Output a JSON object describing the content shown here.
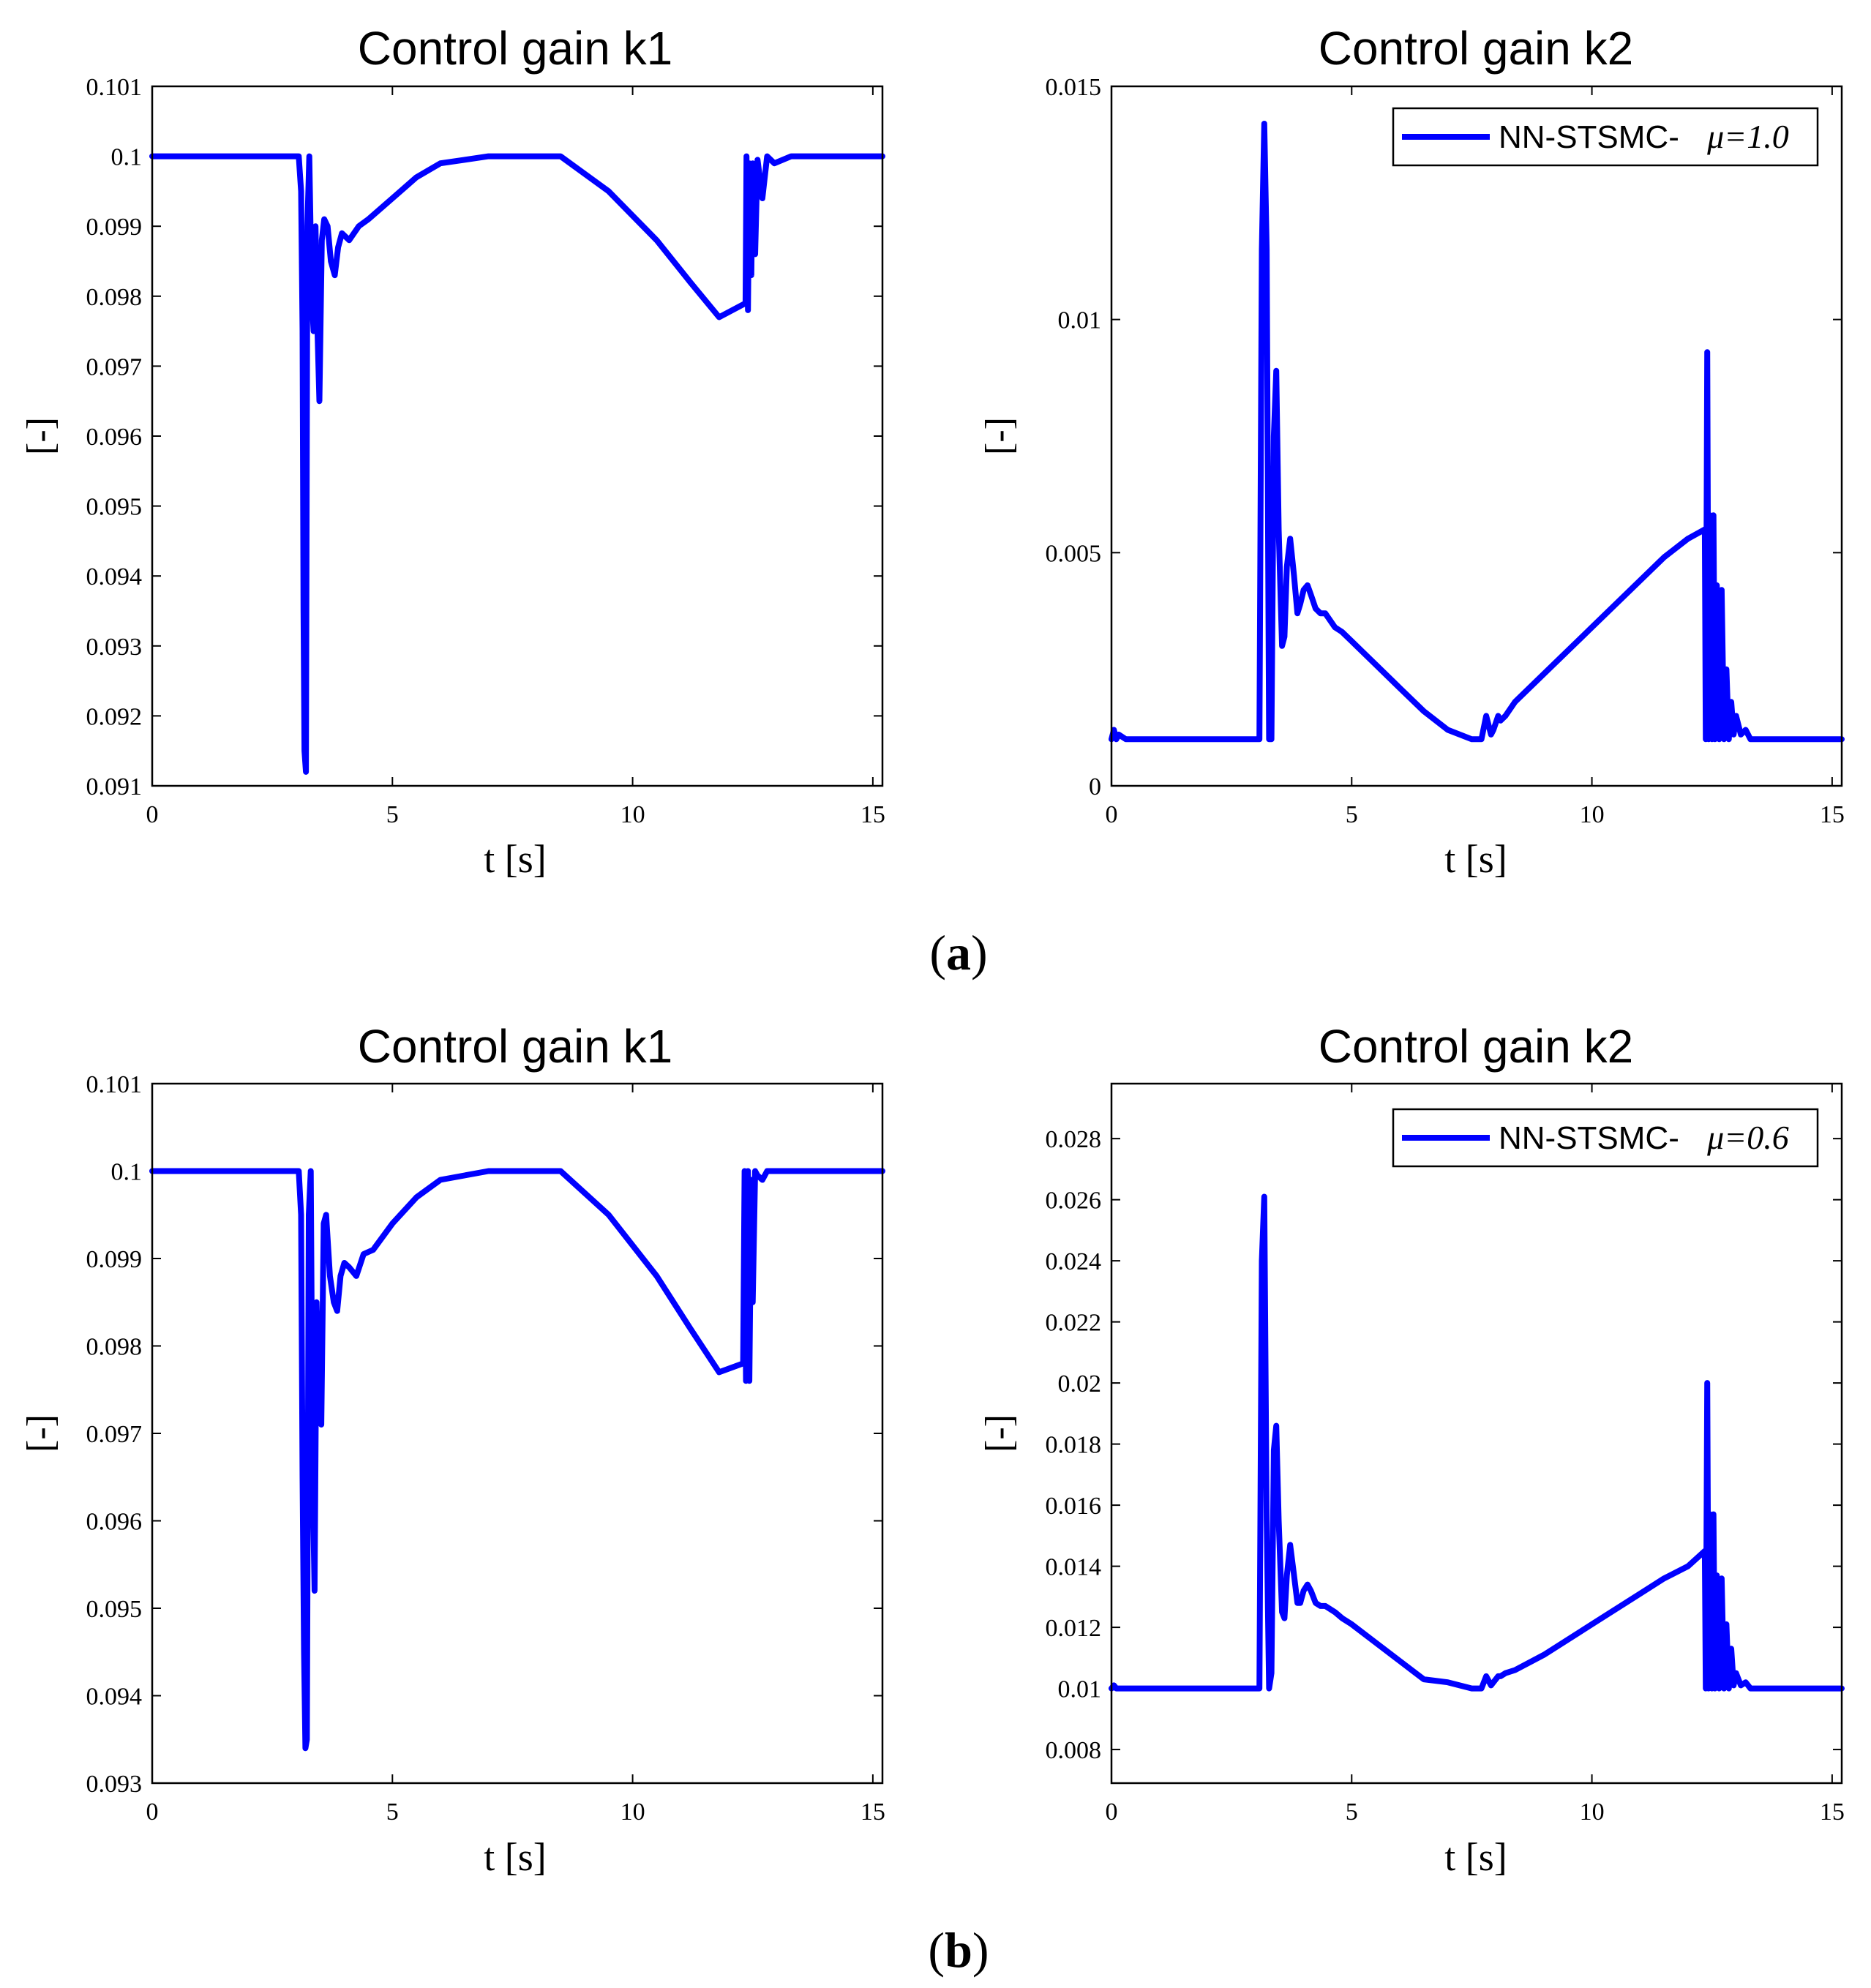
{
  "figure": {
    "captions": [
      {
        "open": "(",
        "letter": "a",
        "close": ")"
      },
      {
        "open": "(",
        "letter": "b",
        "close": ")"
      }
    ],
    "line_color": "#0000ff"
  },
  "chart_data": [
    {
      "id": "a-k1",
      "type": "line",
      "title": "Control gain k1",
      "xlabel": "t [s]",
      "ylabel": "[-]",
      "xlim": [
        0,
        15.2
      ],
      "ylim": [
        0.091,
        0.101
      ],
      "xticks": [
        0,
        5,
        10,
        15
      ],
      "xticklabels": [
        "0",
        "5",
        "10",
        "15"
      ],
      "yticks": [
        0.091,
        0.092,
        0.093,
        0.094,
        0.095,
        0.096,
        0.097,
        0.098,
        0.099,
        0.1,
        0.101
      ],
      "yticklabels": [
        "0.091",
        "0.092",
        "0.093",
        "0.094",
        "0.095",
        "0.096",
        "0.097",
        "0.098",
        "0.099",
        "0.1",
        "0.101"
      ],
      "legend": null,
      "series": [
        {
          "name": "NN-STSMC- μ=1.0",
          "x": [
            0,
            3.05,
            3.1,
            3.13,
            3.15,
            3.17,
            3.2,
            3.23,
            3.27,
            3.32,
            3.36,
            3.4,
            3.44,
            3.48,
            3.53,
            3.58,
            3.65,
            3.72,
            3.8,
            3.87,
            3.95,
            4.1,
            4.3,
            4.5,
            5.0,
            5.5,
            6.0,
            6.5,
            7.0,
            7.6,
            8.5,
            9.5,
            10.5,
            11.2,
            11.8,
            12.35,
            12.37,
            12.4,
            12.43,
            12.47,
            12.5,
            12.55,
            12.6,
            12.7,
            12.8,
            12.95,
            13.3,
            15.2
          ],
          "y": [
            0.1,
            0.1,
            0.0995,
            0.0975,
            0.0935,
            0.0915,
            0.0912,
            0.099,
            0.1,
            0.098,
            0.0975,
            0.099,
            0.0975,
            0.0965,
            0.0988,
            0.0991,
            0.099,
            0.0985,
            0.0983,
            0.0987,
            0.0989,
            0.0988,
            0.099,
            0.0991,
            0.0994,
            0.0997,
            0.0999,
            0.09995,
            0.1,
            0.1,
            0.1,
            0.0995,
            0.0988,
            0.0982,
            0.0977,
            0.0979,
            0.1,
            0.0978,
            0.0999,
            0.0983,
            0.0999,
            0.0986,
            0.09995,
            0.0994,
            0.1,
            0.0999,
            0.1,
            0.1
          ]
        }
      ]
    },
    {
      "id": "a-k2",
      "type": "line",
      "title": "Control gain k2",
      "xlabel": "t [s]",
      "ylabel": "[-]",
      "xlim": [
        0,
        15.2
      ],
      "ylim": [
        0,
        0.015
      ],
      "xticks": [
        0,
        5,
        10,
        15
      ],
      "xticklabels": [
        "0",
        "5",
        "10",
        "15"
      ],
      "yticks": [
        0,
        0.005,
        0.01,
        0.015
      ],
      "yticklabels": [
        "0",
        "0.005",
        "0.01",
        "0.015"
      ],
      "legend": {
        "label": "NN-STSMC- ",
        "mu": "μ=1.0",
        "position": "top-right"
      },
      "series": [
        {
          "name": "NN-STSMC- μ=1.0",
          "x": [
            0,
            0.05,
            0.1,
            0.15,
            0.3,
            3.05,
            3.08,
            3.13,
            3.18,
            3.23,
            3.28,
            3.33,
            3.38,
            3.43,
            3.48,
            3.55,
            3.6,
            3.65,
            3.72,
            3.8,
            3.87,
            3.93,
            4.0,
            4.08,
            4.15,
            4.25,
            4.35,
            4.45,
            4.65,
            4.8,
            5.0,
            5.5,
            6.0,
            6.5,
            7.0,
            7.5,
            7.7,
            7.8,
            7.9,
            7.95,
            8.05,
            8.1,
            8.2,
            8.4,
            9.0,
            10.0,
            11.0,
            11.5,
            12.0,
            12.35,
            12.37,
            12.4,
            12.43,
            12.46,
            12.5,
            12.53,
            12.56,
            12.6,
            12.65,
            12.7,
            12.75,
            12.8,
            12.85,
            12.9,
            12.95,
            13.0,
            13.1,
            13.2,
            13.3,
            13.5,
            15.2
          ],
          "y": [
            0.001,
            0.0012,
            0.001,
            0.0011,
            0.001,
            0.001,
            0.001,
            0.0115,
            0.0142,
            0.0115,
            0.001,
            0.001,
            0.0075,
            0.0089,
            0.0055,
            0.003,
            0.0032,
            0.0047,
            0.0053,
            0.0045,
            0.0037,
            0.0039,
            0.0042,
            0.0043,
            0.0041,
            0.0038,
            0.0037,
            0.0037,
            0.0034,
            0.0033,
            0.0031,
            0.0026,
            0.0021,
            0.0016,
            0.0012,
            0.001,
            0.001,
            0.0015,
            0.0011,
            0.0012,
            0.0015,
            0.0014,
            0.0015,
            0.0018,
            0.0024,
            0.0034,
            0.0044,
            0.0049,
            0.0053,
            0.0055,
            0.001,
            0.0093,
            0.001,
            0.0058,
            0.001,
            0.0058,
            0.001,
            0.0043,
            0.001,
            0.0042,
            0.001,
            0.0025,
            0.001,
            0.0018,
            0.0011,
            0.0015,
            0.0011,
            0.0012,
            0.001,
            0.001,
            0.001
          ]
        }
      ]
    },
    {
      "id": "b-k1",
      "type": "line",
      "title": "Control gain k1",
      "xlabel": "t [s]",
      "ylabel": "[-]",
      "xlim": [
        0,
        15.2
      ],
      "ylim": [
        0.093,
        0.101
      ],
      "xticks": [
        0,
        5,
        10,
        15
      ],
      "xticklabels": [
        "0",
        "5",
        "10",
        "15"
      ],
      "yticks": [
        0.093,
        0.094,
        0.095,
        0.096,
        0.097,
        0.098,
        0.099,
        0.1,
        0.101
      ],
      "yticklabels": [
        "0.093",
        "0.094",
        "0.095",
        "0.096",
        "0.097",
        "0.098",
        "0.099",
        "0.1",
        "0.101"
      ],
      "legend": null,
      "series": [
        {
          "name": "NN-STSMC- μ=0.6",
          "x": [
            0,
            3.05,
            3.1,
            3.13,
            3.16,
            3.19,
            3.22,
            3.26,
            3.3,
            3.34,
            3.38,
            3.42,
            3.47,
            3.52,
            3.57,
            3.62,
            3.7,
            3.78,
            3.85,
            3.92,
            4.0,
            4.1,
            4.25,
            4.4,
            4.6,
            5.0,
            5.5,
            6.0,
            6.5,
            7.0,
            7.6,
            8.5,
            9.5,
            10.5,
            11.2,
            11.8,
            12.3,
            12.33,
            12.36,
            12.4,
            12.43,
            12.47,
            12.5,
            12.55,
            12.6,
            12.7,
            12.8,
            12.9,
            13.3,
            15.2
          ],
          "y": [
            0.1,
            0.1,
            0.0995,
            0.0965,
            0.0945,
            0.0934,
            0.0935,
            0.0995,
            0.1,
            0.0965,
            0.0952,
            0.0985,
            0.0975,
            0.0971,
            0.0994,
            0.0995,
            0.0988,
            0.0985,
            0.0984,
            0.0988,
            0.09895,
            0.0989,
            0.0988,
            0.09905,
            0.0991,
            0.0994,
            0.0997,
            0.0999,
            0.09995,
            0.1,
            0.1,
            0.1,
            0.0995,
            0.0988,
            0.0982,
            0.0977,
            0.0978,
            0.1,
            0.0976,
            0.1,
            0.0976,
            0.0999,
            0.0985,
            0.1,
            0.09995,
            0.0999,
            0.1,
            0.1,
            0.1,
            0.1
          ]
        }
      ]
    },
    {
      "id": "b-k2",
      "type": "line",
      "title": "Control gain k2",
      "xlabel": "t [s]",
      "ylabel": "[-]",
      "xlim": [
        0,
        15.2
      ],
      "ylim": [
        0.0069,
        0.0298
      ],
      "xticks": [
        0,
        5,
        10,
        15
      ],
      "xticklabels": [
        "0",
        "5",
        "10",
        "15"
      ],
      "yticks": [
        0.008,
        0.01,
        0.012,
        0.014,
        0.016,
        0.018,
        0.02,
        0.022,
        0.024,
        0.026,
        0.028
      ],
      "yticklabels": [
        "0.008",
        "0.01",
        "0.012",
        "0.014",
        "0.016",
        "0.018",
        "0.02",
        "0.022",
        "0.024",
        "0.026",
        "0.028"
      ],
      "legend": {
        "label": "NN-STSMC- ",
        "mu": "μ=0.6",
        "position": "top-right"
      },
      "series": [
        {
          "name": "NN-STSMC- μ=0.6",
          "x": [
            0,
            0.05,
            0.1,
            0.15,
            0.3,
            3.05,
            3.08,
            3.13,
            3.18,
            3.23,
            3.28,
            3.33,
            3.38,
            3.43,
            3.48,
            3.55,
            3.6,
            3.65,
            3.72,
            3.8,
            3.87,
            3.93,
            4.0,
            4.08,
            4.15,
            4.25,
            4.35,
            4.45,
            4.65,
            4.8,
            5.0,
            5.5,
            6.0,
            6.5,
            7.0,
            7.5,
            7.7,
            7.8,
            7.9,
            7.95,
            8.05,
            8.1,
            8.2,
            8.4,
            9.0,
            10.0,
            11.0,
            11.5,
            12.0,
            12.35,
            12.37,
            12.4,
            12.43,
            12.46,
            12.5,
            12.53,
            12.56,
            12.6,
            12.65,
            12.7,
            12.75,
            12.8,
            12.85,
            12.9,
            12.95,
            13.0,
            13.1,
            13.2,
            13.3,
            13.5,
            15.2
          ],
          "y": [
            0.01,
            0.0101,
            0.01,
            0.01,
            0.01,
            0.01,
            0.01,
            0.024,
            0.0261,
            0.0155,
            0.01,
            0.0105,
            0.0178,
            0.0186,
            0.0155,
            0.0125,
            0.0123,
            0.0137,
            0.0147,
            0.0137,
            0.0128,
            0.0128,
            0.0132,
            0.0134,
            0.0132,
            0.0128,
            0.0127,
            0.0127,
            0.0125,
            0.0123,
            0.0121,
            0.0115,
            0.0109,
            0.0103,
            0.0102,
            0.01,
            0.01,
            0.0104,
            0.0101,
            0.0102,
            0.0104,
            0.0104,
            0.0105,
            0.0106,
            0.0111,
            0.0121,
            0.0131,
            0.0136,
            0.014,
            0.0145,
            0.01,
            0.02,
            0.01,
            0.0157,
            0.01,
            0.0157,
            0.01,
            0.0137,
            0.01,
            0.0136,
            0.01,
            0.0121,
            0.01,
            0.0113,
            0.0101,
            0.0105,
            0.0101,
            0.0102,
            0.01,
            0.01,
            0.01
          ]
        }
      ]
    }
  ]
}
